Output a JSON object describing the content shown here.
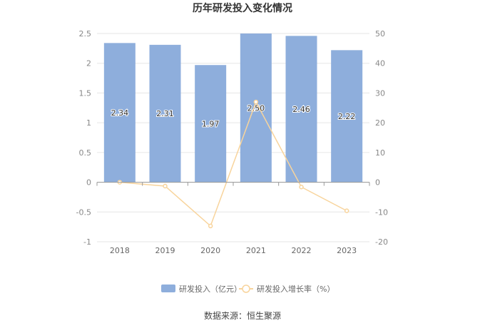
{
  "chart_data": {
    "type": "bar",
    "title": "历年研发投入变化情况",
    "categories": [
      "2018",
      "2019",
      "2020",
      "2021",
      "2022",
      "2023"
    ],
    "series": [
      {
        "name": "研发投入（亿元）",
        "type": "bar",
        "axis": "left",
        "values": [
          2.34,
          2.31,
          1.97,
          2.5,
          2.46,
          2.22
        ],
        "labels": [
          "2.34",
          "2.31",
          "1.97",
          "2.50",
          "2.46",
          "2.22"
        ],
        "color": "#8eaedc"
      },
      {
        "name": "研发投入增长率（%）",
        "type": "line",
        "axis": "right",
        "values": [
          0.0,
          -1.3,
          -14.7,
          27.0,
          -1.6,
          -9.6
        ],
        "color": "#f8d49c"
      }
    ],
    "y_left": {
      "min": -1,
      "max": 2.5,
      "ticks": [
        "2.5",
        "2",
        "1.5",
        "1",
        "0.5",
        "0",
        "-0.5",
        "-1"
      ]
    },
    "y_right": {
      "min": -20,
      "max": 50,
      "ticks": [
        "50",
        "40",
        "30",
        "20",
        "10",
        "0",
        "-10",
        "-20"
      ]
    },
    "grid": true,
    "legend_position": "bottom"
  },
  "source": "数据来源：恒生聚源"
}
